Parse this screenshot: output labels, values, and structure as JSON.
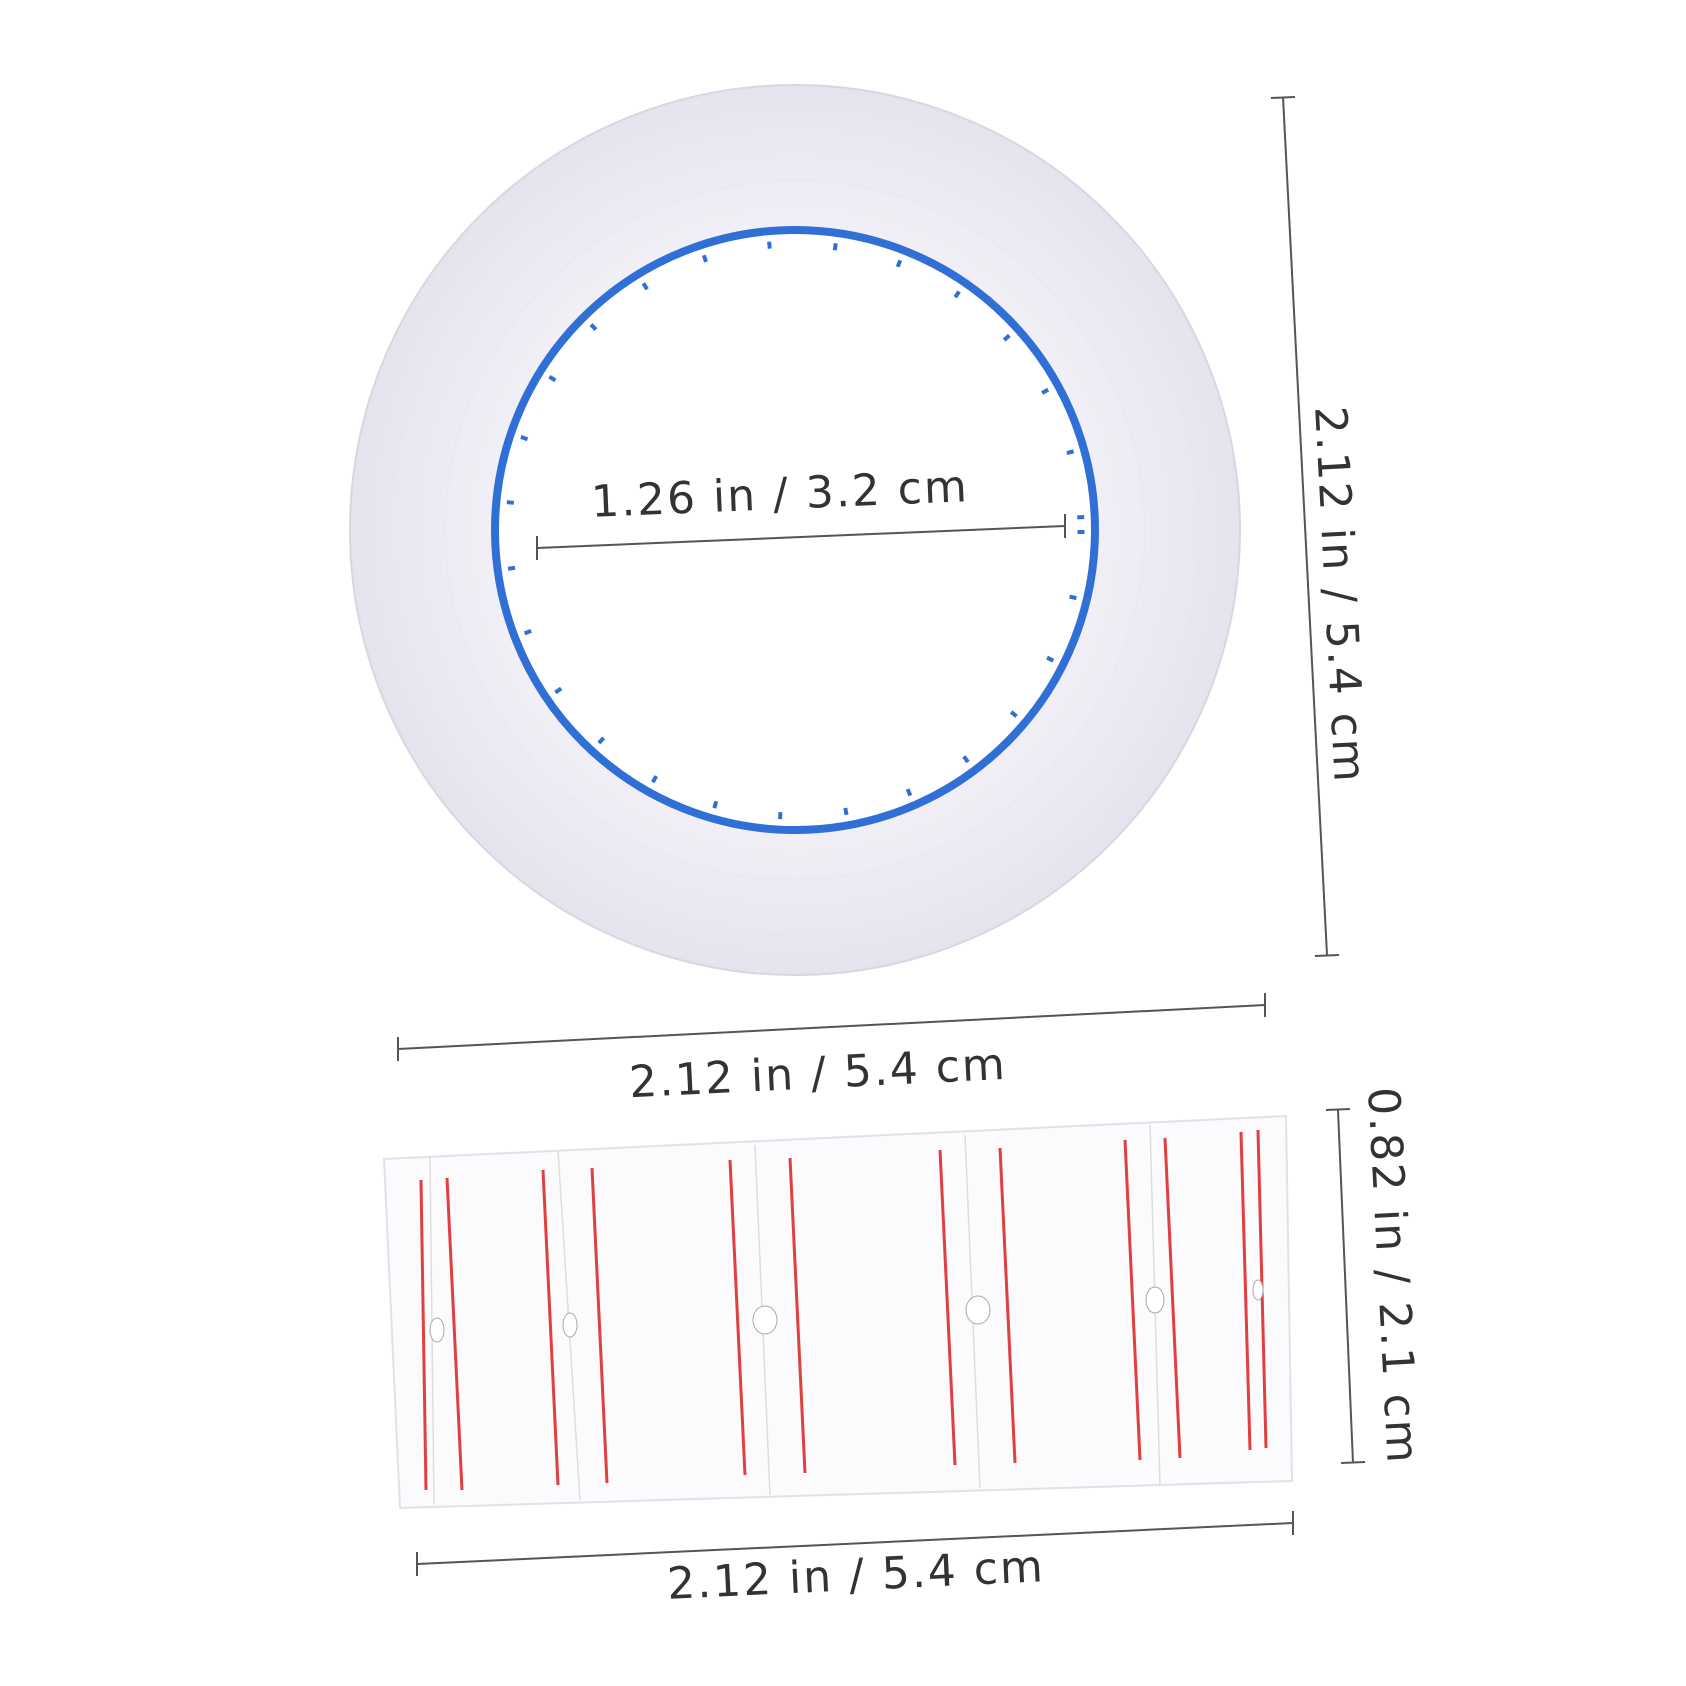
{
  "dimensions": {
    "inner_diameter": "1.26 in / 3.2 cm",
    "roll_height": "2.12 in / 5.4 cm",
    "roll_width": "2.12 in / 5.4 cm",
    "strip_height": "0.82 in / 2.1 cm",
    "strip_width": "2.12 in / 5.4 cm"
  }
}
